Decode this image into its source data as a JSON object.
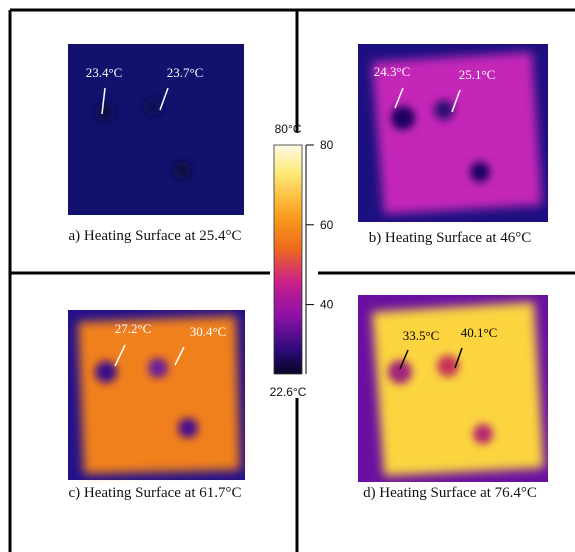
{
  "panels": [
    {
      "caption": "a)  Heating Surface at 25.4°C",
      "annotations": [
        "23.4°C",
        "23.7°C"
      ]
    },
    {
      "caption": "b) Heating Surface at 46°C",
      "annotations": [
        "24.3°C",
        "25.1°C"
      ]
    },
    {
      "caption": "c) Heating Surface at 61.7°C",
      "annotations": [
        "27.2°C",
        "30.4°C"
      ]
    },
    {
      "caption": "d) Heating Surface at 76.4°C",
      "annotations": [
        "33.5°C",
        "40.1°C"
      ]
    }
  ],
  "colorbar": {
    "max_label": "80°C",
    "min_label": "22.6°C",
    "lim": [
      22.6,
      80
    ],
    "ticks": [
      40,
      60,
      80
    ]
  }
}
